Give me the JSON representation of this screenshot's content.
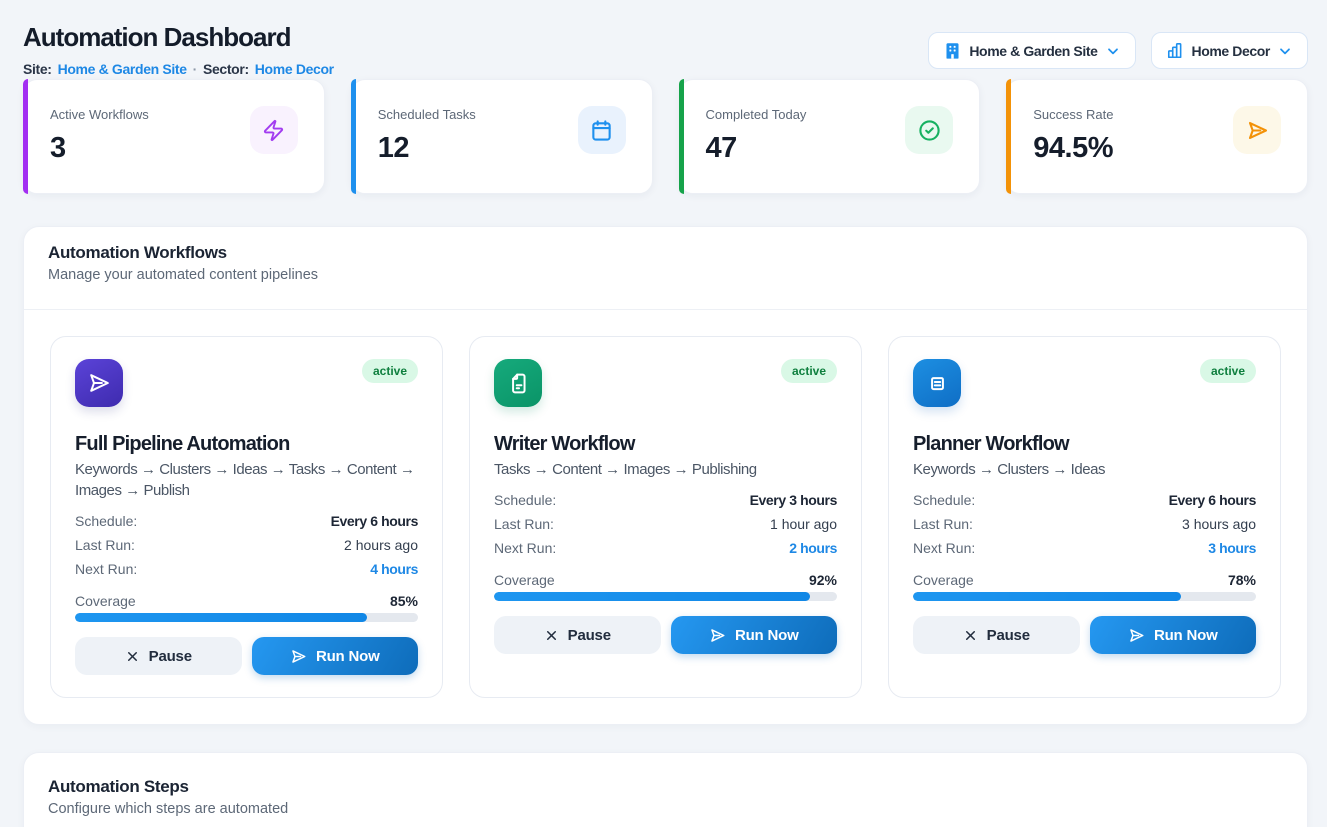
{
  "header": {
    "title": "Automation Dashboard",
    "site_label": "Site:",
    "site_value": "Home & Garden Site",
    "separator": "·",
    "sector_label": "Sector:",
    "sector_value": "Home Decor",
    "site_dropdown": "Home & Garden Site",
    "sector_dropdown": "Home Decor"
  },
  "stats": [
    {
      "label": "Active Workflows",
      "value": "3",
      "accent": "#a32ef2",
      "icon": "zap-icon",
      "icon_bg": "#f9f2fe",
      "icon_color": "#a32ef2"
    },
    {
      "label": "Scheduled Tasks",
      "value": "12",
      "accent": "#1e90ee",
      "icon": "calendar-icon",
      "icon_bg": "#e9f2fd",
      "icon_color": "#1e90ee"
    },
    {
      "label": "Completed Today",
      "value": "47",
      "accent": "#16a34a",
      "icon": "check-circle-icon",
      "icon_bg": "#e9f9f0",
      "icon_color": "#17b161"
    },
    {
      "label": "Success Rate",
      "value": "94.5%",
      "accent": "#f39208",
      "icon": "send-icon",
      "icon_bg": "#fdf8e8",
      "icon_color": "#f39208"
    }
  ],
  "workflows_section": {
    "title": "Automation Workflows",
    "subtitle": "Manage your automated content pipelines"
  },
  "workflows": [
    {
      "name": "Full Pipeline Automation",
      "status": "active",
      "pipeline": "Keywords → Clusters → Ideas → Tasks → Content → Images → Publish",
      "icon": "send-icon",
      "schedule_label": "Schedule:",
      "schedule": "Every 6 hours",
      "last_run_label": "Last Run:",
      "last_run": "2 hours ago",
      "next_run_label": "Next Run:",
      "next_run": "4 hours",
      "coverage_label": "Coverage",
      "coverage": "85%",
      "coverage_pct": 85,
      "pause_label": "Pause",
      "run_label": "Run Now"
    },
    {
      "name": "Writer Workflow",
      "status": "active",
      "pipeline": "Tasks → Content → Images → Publishing",
      "icon": "document-icon",
      "schedule_label": "Schedule:",
      "schedule": "Every 3 hours",
      "last_run_label": "Last Run:",
      "last_run": "1 hour ago",
      "next_run_label": "Next Run:",
      "next_run": "2 hours",
      "coverage_label": "Coverage",
      "coverage": "92%",
      "coverage_pct": 92,
      "pause_label": "Pause",
      "run_label": "Run Now"
    },
    {
      "name": "Planner Workflow",
      "status": "active",
      "pipeline": "Keywords → Clusters → Ideas",
      "icon": "list-icon",
      "schedule_label": "Schedule:",
      "schedule": "Every 6 hours",
      "last_run_label": "Last Run:",
      "last_run": "3 hours ago",
      "next_run_label": "Next Run:",
      "next_run": "3 hours",
      "coverage_label": "Coverage",
      "coverage": "78%",
      "coverage_pct": 78,
      "pause_label": "Pause",
      "run_label": "Run Now"
    }
  ],
  "steps_section": {
    "title": "Automation Steps",
    "subtitle": "Configure which steps are automated"
  },
  "colors": {
    "accent_blue": "#1e88e5",
    "badge_green": "#0e7f3e",
    "progress_blue": "#1e96f0"
  }
}
